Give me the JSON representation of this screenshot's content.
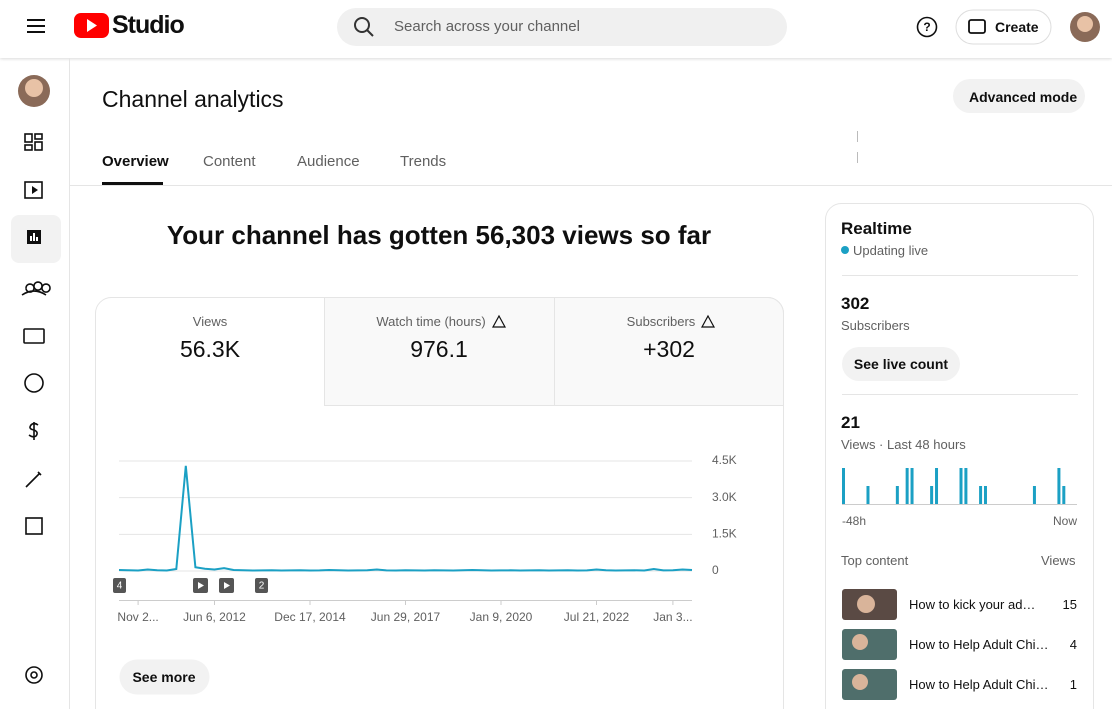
{
  "header": {
    "logo": "Studio",
    "search_placeholder": "Search across your channel",
    "create": "Create"
  },
  "page": {
    "title": "Channel analytics",
    "advanced": "Advanced mode",
    "tabs": [
      "Overview",
      "Content",
      "Audience",
      "Trends"
    ],
    "headline": "Your channel has gotten 56,303 views so far",
    "see_more": "See more"
  },
  "metrics": [
    {
      "label": "Views",
      "value": "56.3K"
    },
    {
      "label": "Watch time (hours)",
      "value": "976.1"
    },
    {
      "label": "Subscribers",
      "value": "+302"
    }
  ],
  "chart_data": [
    {
      "type": "line",
      "color": "#1ba0c4",
      "categories": [
        null,
        null,
        "Nov 2...",
        null,
        null,
        null,
        null,
        null,
        null,
        null,
        "Jun 6, 2012",
        null,
        null,
        null,
        null,
        null,
        null,
        null,
        null,
        null,
        "Dec 17, 2014",
        null,
        null,
        null,
        null,
        null,
        null,
        null,
        null,
        null,
        "Jun 29, 2017",
        null,
        null,
        null,
        null,
        null,
        null,
        null,
        null,
        null,
        "Jan 9, 2020",
        null,
        null,
        null,
        null,
        null,
        null,
        null,
        null,
        null,
        "Jul 21, 2022",
        null,
        null,
        null,
        null,
        null,
        null,
        null,
        "Jan 3...",
        null,
        null
      ],
      "values": [
        40,
        30,
        20,
        60,
        30,
        20,
        80,
        4300,
        150,
        90,
        60,
        120,
        40,
        30,
        20,
        25,
        30,
        20,
        25,
        30,
        20,
        25,
        40,
        30,
        20,
        25,
        30,
        60,
        25,
        20,
        30,
        25,
        20,
        30,
        25,
        20,
        30,
        40,
        30,
        20,
        25,
        30,
        20,
        25,
        30,
        20,
        25,
        30,
        20,
        25,
        60,
        30,
        20,
        25,
        30,
        20,
        80,
        25,
        30,
        60,
        40
      ],
      "ylim": [
        0,
        4500
      ],
      "yticks": [
        0,
        {
          "value": 1500,
          "label": "1.5K"
        },
        {
          "value": 3000,
          "label": "3.0K"
        },
        {
          "value": 4500,
          "label": "4.5K"
        }
      ],
      "grid": true,
      "annotations": [
        "4",
        "2"
      ]
    },
    {
      "type": "bar",
      "color": "#1ba0c4",
      "categories": [
        "-48h",
        null,
        null,
        null,
        null,
        null,
        null,
        null,
        null,
        null,
        null,
        null,
        null,
        null,
        null,
        null,
        null,
        null,
        null,
        null,
        null,
        null,
        null,
        null,
        null,
        null,
        null,
        null,
        null,
        null,
        null,
        null,
        null,
        null,
        null,
        null,
        null,
        null,
        null,
        null,
        null,
        null,
        null,
        null,
        null,
        null,
        null,
        "Now"
      ],
      "values": [
        2,
        0,
        0,
        0,
        0,
        1,
        0,
        0,
        0,
        0,
        0,
        1,
        0,
        2,
        2,
        0,
        0,
        0,
        1,
        2,
        0,
        0,
        0,
        0,
        2,
        2,
        0,
        0,
        1,
        1,
        0,
        0,
        0,
        0,
        0,
        0,
        0,
        0,
        0,
        1,
        0,
        0,
        0,
        0,
        2,
        1,
        0,
        0
      ]
    }
  ],
  "realtime": {
    "title": "Realtime",
    "status": "Updating live",
    "subscribers": "302",
    "subscribers_label": "Subscribers",
    "live_count": "See live count",
    "views": "21",
    "views_label": "Views · Last 48 hours",
    "top_content": "Top content",
    "views_col": "Views",
    "items": [
      {
        "title": "How to kick your ad…",
        "views": "15"
      },
      {
        "title": "How to Help Adult Chi…",
        "views": "4"
      },
      {
        "title": "How to Help Adult Chi…",
        "views": "1"
      }
    ]
  }
}
